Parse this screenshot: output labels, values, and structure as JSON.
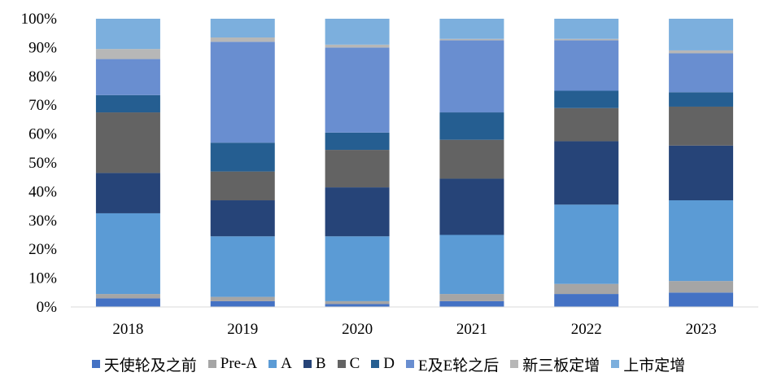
{
  "chart_data": {
    "type": "bar",
    "stacked": true,
    "categories": [
      "2018",
      "2019",
      "2020",
      "2021",
      "2022",
      "2023"
    ],
    "ylim": [
      0,
      100
    ],
    "yticks": [
      "0%",
      "10%",
      "20%",
      "30%",
      "40%",
      "50%",
      "60%",
      "70%",
      "80%",
      "90%",
      "100%"
    ],
    "grid": false,
    "legend_position": "bottom",
    "series": [
      {
        "name": "天使轮及之前",
        "color": "#4472C4",
        "values": [
          3,
          2,
          1,
          2,
          4.5,
          5
        ]
      },
      {
        "name": "Pre-A",
        "color": "#A5A5A5",
        "values": [
          1.5,
          1.5,
          1,
          2.5,
          3.5,
          4
        ]
      },
      {
        "name": "A",
        "color": "#5B9BD5",
        "values": [
          28,
          21,
          22.5,
          20.5,
          27.5,
          28
        ]
      },
      {
        "name": "B",
        "color": "#264478",
        "values": [
          14,
          12.5,
          17,
          19.5,
          22,
          19
        ]
      },
      {
        "name": "C",
        "color": "#636363",
        "values": [
          21,
          10,
          13,
          13.5,
          11.5,
          13.5
        ]
      },
      {
        "name": "D",
        "color": "#255E91",
        "values": [
          6,
          10,
          6,
          9.5,
          6,
          5
        ]
      },
      {
        "name": "E及E轮之后",
        "color": "#698ED0",
        "values": [
          12.5,
          35,
          29.5,
          25,
          17.5,
          13.5
        ]
      },
      {
        "name": "新三板定增",
        "color": "#B7B7B7",
        "values": [
          3.5,
          1.5,
          1,
          0.5,
          0.5,
          1
        ]
      },
      {
        "name": "上市定增",
        "color": "#7CAFDD",
        "values": [
          10.5,
          6.5,
          9,
          7,
          7,
          11
        ]
      }
    ]
  }
}
